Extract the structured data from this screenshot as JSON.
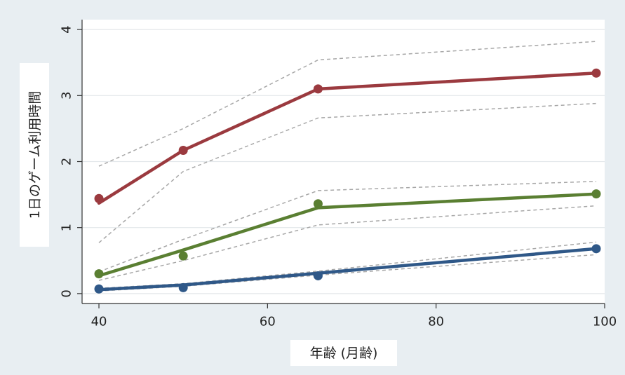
{
  "chart_data": {
    "type": "line",
    "xlabel": "年齢 (月齢)",
    "ylabel": "1日のゲーム利用時間",
    "xlim": [
      38,
      100
    ],
    "ylim": [
      -0.15,
      4.15
    ],
    "x_ticks": [
      40,
      60,
      80,
      100
    ],
    "y_ticks": [
      0,
      1,
      2,
      3,
      4
    ],
    "grid": true,
    "legend": "none",
    "series": [
      {
        "color": "#9b3a3f",
        "fit": {
          "x": [
            40,
            50,
            66,
            99
          ],
          "y": [
            1.37,
            2.17,
            3.1,
            3.34
          ]
        },
        "observed": {
          "x": [
            40,
            50,
            66,
            99
          ],
          "y": [
            1.44,
            2.17,
            3.1,
            3.34
          ]
        },
        "ci_upper": {
          "x": [
            40,
            50,
            66,
            99
          ],
          "y": [
            1.93,
            2.5,
            3.54,
            3.82
          ]
        },
        "ci_lower": {
          "x": [
            40,
            50,
            66,
            99
          ],
          "y": [
            0.77,
            1.85,
            2.66,
            2.88
          ]
        }
      },
      {
        "color": "#5a7f32",
        "fit": {
          "x": [
            40,
            50,
            66,
            99
          ],
          "y": [
            0.27,
            0.66,
            1.3,
            1.51
          ]
        },
        "observed": {
          "x": [
            40,
            50,
            66,
            99
          ],
          "y": [
            0.3,
            0.57,
            1.36,
            1.51
          ]
        },
        "ci_upper": {
          "x": [
            40,
            50,
            66,
            99
          ],
          "y": [
            0.33,
            0.82,
            1.56,
            1.7
          ]
        },
        "ci_lower": {
          "x": [
            40,
            50,
            66,
            99
          ],
          "y": [
            0.2,
            0.5,
            1.04,
            1.33
          ]
        }
      },
      {
        "color": "#2f5888",
        "fit": {
          "x": [
            40,
            50,
            66,
            99
          ],
          "y": [
            0.06,
            0.13,
            0.31,
            0.68
          ]
        },
        "observed": {
          "x": [
            40,
            50,
            66,
            99
          ],
          "y": [
            0.07,
            0.09,
            0.27,
            0.68
          ]
        },
        "ci_upper": {
          "x": [
            40,
            50,
            66,
            99
          ],
          "y": [
            0.08,
            0.15,
            0.34,
            0.78
          ]
        },
        "ci_lower": {
          "x": [
            40,
            50,
            66,
            99
          ],
          "y": [
            0.04,
            0.11,
            0.28,
            0.59
          ]
        }
      }
    ]
  }
}
